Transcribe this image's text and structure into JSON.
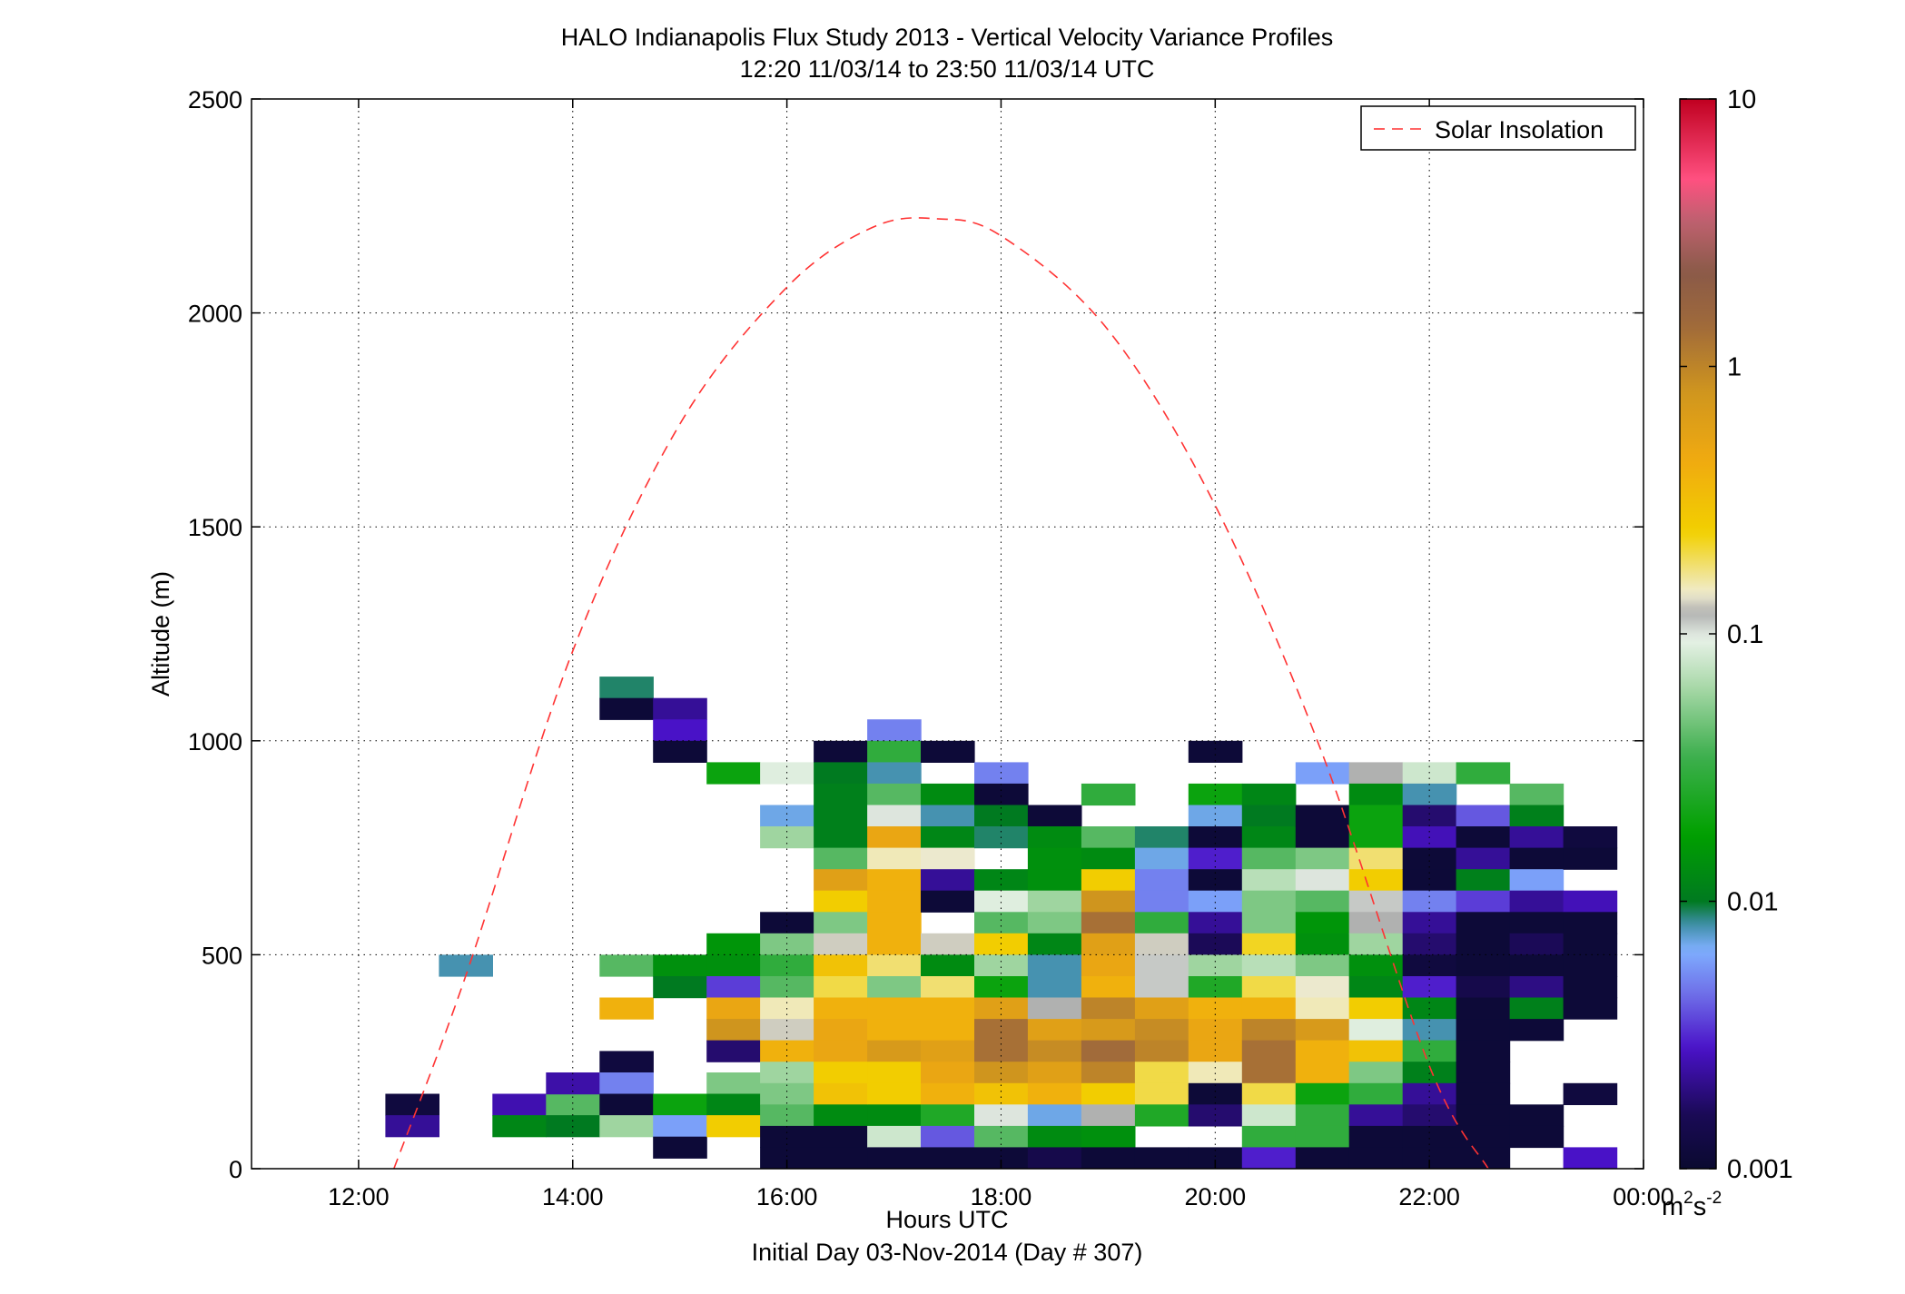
{
  "chart_data": {
    "type": "heatmap",
    "title": "HALO Indianapolis Flux Study 2013 - Vertical Velocity Variance Profiles",
    "subtitle": "12:20 11/03/14 to 23:50 11/03/14  UTC",
    "xlabel": "Hours UTC",
    "xlabel2": "Initial Day 03-Nov-2014 (Day # 307)",
    "ylabel": "Altitude (m)",
    "xlim": [
      11.0,
      24.0
    ],
    "ylim": [
      0,
      2500
    ],
    "x_ticks": [
      12,
      14,
      16,
      18,
      20,
      22,
      24
    ],
    "x_tick_labels": [
      "12:00",
      "14:00",
      "16:00",
      "18:00",
      "20:00",
      "22:00",
      "00:00"
    ],
    "y_ticks": [
      0,
      500,
      1000,
      1500,
      2000,
      2500
    ],
    "y_tick_labels": [
      "0",
      "500",
      "1000",
      "1500",
      "2000",
      "2500"
    ],
    "grid": true,
    "legend": {
      "position": "top-right",
      "entries": [
        "Solar Insolation"
      ]
    },
    "colorbar": {
      "scale": "log",
      "range": [
        0.001,
        10
      ],
      "tick_values": [
        0.001,
        0.01,
        0.1,
        1,
        10
      ],
      "tick_labels": [
        "0.001",
        "0.01",
        "0.1",
        "1",
        "10"
      ],
      "unit_main": "m",
      "unit_sup1": "2",
      "unit_mid": "s",
      "unit_sup2": "-2"
    },
    "colors": {
      "solar_line": "#ff3333",
      "grid": "#000000"
    },
    "cell_width_hours": 0.5,
    "cell_height_m": 50,
    "solar_insolation": {
      "x": [
        12.33,
        13.0,
        14.0,
        15.0,
        16.0,
        16.8,
        17.4,
        18.0,
        19.0,
        20.0,
        21.0,
        22.0,
        22.55
      ],
      "y": [
        0,
        450,
        1210,
        1740,
        2060,
        2200,
        2220,
        2180,
        1960,
        1550,
        970,
        240,
        0
      ]
    },
    "cells": [
      [
        12.5,
        150,
        0.0012
      ],
      [
        12.5,
        100,
        0.0022
      ],
      [
        13.0,
        475,
        0.008
      ],
      [
        13.5,
        150,
        0.0025
      ],
      [
        13.5,
        100,
        0.012
      ],
      [
        14.0,
        150,
        0.04
      ],
      [
        14.0,
        100,
        0.01
      ],
      [
        14.0,
        200,
        0.0024
      ],
      [
        14.5,
        1125,
        0.009
      ],
      [
        14.5,
        1075,
        0.0011
      ],
      [
        14.5,
        475,
        0.04
      ],
      [
        14.5,
        375,
        0.4
      ],
      [
        14.5,
        250,
        0.0012
      ],
      [
        14.5,
        200,
        0.005
      ],
      [
        14.5,
        150,
        0.0011
      ],
      [
        14.5,
        100,
        0.06
      ],
      [
        15.0,
        1075,
        0.0022
      ],
      [
        15.0,
        1025,
        0.0028
      ],
      [
        15.0,
        975,
        0.0011
      ],
      [
        15.0,
        475,
        0.014
      ],
      [
        15.0,
        425,
        0.01
      ],
      [
        15.0,
        150,
        0.02
      ],
      [
        15.0,
        100,
        0.006
      ],
      [
        15.0,
        50,
        0.0011
      ],
      [
        15.5,
        925,
        0.02
      ],
      [
        15.5,
        525,
        0.015
      ],
      [
        15.5,
        475,
        0.014
      ],
      [
        15.5,
        425,
        0.0035
      ],
      [
        15.5,
        375,
        0.5
      ],
      [
        15.5,
        325,
        0.8
      ],
      [
        15.5,
        275,
        0.0018
      ],
      [
        15.5,
        200,
        0.05
      ],
      [
        15.5,
        150,
        0.012
      ],
      [
        15.5,
        100,
        0.25
      ],
      [
        16.0,
        925,
        0.09
      ],
      [
        16.0,
        825,
        0.007
      ],
      [
        16.0,
        775,
        0.06
      ],
      [
        16.0,
        575,
        0.0011
      ],
      [
        16.0,
        525,
        0.05
      ],
      [
        16.0,
        475,
        0.03
      ],
      [
        16.0,
        425,
        0.04
      ],
      [
        16.0,
        375,
        0.15
      ],
      [
        16.0,
        325,
        0.13
      ],
      [
        16.0,
        275,
        0.4
      ],
      [
        16.0,
        225,
        0.06
      ],
      [
        16.0,
        175,
        0.05
      ],
      [
        16.0,
        125,
        0.04
      ],
      [
        16.0,
        75,
        0.0011
      ],
      [
        16.0,
        25,
        0.0011
      ],
      [
        16.5,
        975,
        0.0011
      ],
      [
        16.5,
        925,
        0.01
      ],
      [
        16.5,
        875,
        0.011
      ],
      [
        16.5,
        825,
        0.011
      ],
      [
        16.5,
        775,
        0.011
      ],
      [
        16.5,
        725,
        0.04
      ],
      [
        16.5,
        675,
        0.6
      ],
      [
        16.5,
        625,
        0.25
      ],
      [
        16.5,
        575,
        0.05
      ],
      [
        16.5,
        525,
        0.13
      ],
      [
        16.5,
        475,
        0.3
      ],
      [
        16.5,
        425,
        0.2
      ],
      [
        16.5,
        375,
        0.4
      ],
      [
        16.5,
        325,
        0.5
      ],
      [
        16.5,
        275,
        0.5
      ],
      [
        16.5,
        225,
        0.25
      ],
      [
        16.5,
        175,
        0.3
      ],
      [
        16.5,
        125,
        0.013
      ],
      [
        16.5,
        75,
        0.0011
      ],
      [
        16.5,
        25,
        0.0011
      ],
      [
        17.0,
        1025,
        0.005
      ],
      [
        17.0,
        975,
        0.03
      ],
      [
        17.0,
        925,
        0.008
      ],
      [
        17.0,
        875,
        0.04
      ],
      [
        17.0,
        825,
        0.1
      ],
      [
        17.0,
        775,
        0.5
      ],
      [
        17.0,
        725,
        0.15
      ],
      [
        17.0,
        675,
        0.4
      ],
      [
        17.0,
        625,
        0.4
      ],
      [
        17.0,
        575,
        0.4
      ],
      [
        17.0,
        525,
        0.4
      ],
      [
        17.0,
        475,
        0.18
      ],
      [
        17.0,
        425,
        0.05
      ],
      [
        17.0,
        375,
        0.4
      ],
      [
        17.0,
        325,
        0.4
      ],
      [
        17.0,
        275,
        0.7
      ],
      [
        17.0,
        225,
        0.25
      ],
      [
        17.0,
        175,
        0.25
      ],
      [
        17.0,
        125,
        0.013
      ],
      [
        17.0,
        75,
        0.08
      ],
      [
        17.0,
        25,
        0.0011
      ],
      [
        17.5,
        975,
        0.0011
      ],
      [
        17.5,
        875,
        0.013
      ],
      [
        17.5,
        825,
        0.008
      ],
      [
        17.5,
        775,
        0.012
      ],
      [
        17.5,
        725,
        0.14
      ],
      [
        17.5,
        675,
        0.0022
      ],
      [
        17.5,
        625,
        0.0011
      ],
      [
        17.5,
        525,
        0.13
      ],
      [
        17.5,
        475,
        0.013
      ],
      [
        17.5,
        425,
        0.18
      ],
      [
        17.5,
        375,
        0.4
      ],
      [
        17.5,
        325,
        0.4
      ],
      [
        17.5,
        275,
        0.6
      ],
      [
        17.5,
        225,
        0.5
      ],
      [
        17.5,
        175,
        0.4
      ],
      [
        17.5,
        125,
        0.025
      ],
      [
        17.5,
        75,
        0.004
      ],
      [
        17.5,
        25,
        0.0011
      ],
      [
        18.0,
        925,
        0.005
      ],
      [
        18.0,
        875,
        0.0011
      ],
      [
        18.0,
        825,
        0.01
      ],
      [
        18.0,
        775,
        0.009
      ],
      [
        18.0,
        675,
        0.012
      ],
      [
        18.0,
        625,
        0.09
      ],
      [
        18.0,
        575,
        0.04
      ],
      [
        18.0,
        525,
        0.25
      ],
      [
        18.0,
        475,
        0.06
      ],
      [
        18.0,
        425,
        0.02
      ],
      [
        18.0,
        375,
        0.6
      ],
      [
        18.0,
        325,
        1.3
      ],
      [
        18.0,
        275,
        1.3
      ],
      [
        18.0,
        225,
        0.8
      ],
      [
        18.0,
        175,
        0.3
      ],
      [
        18.0,
        125,
        0.1
      ],
      [
        18.0,
        75,
        0.04
      ],
      [
        18.0,
        25,
        0.0011
      ],
      [
        18.5,
        825,
        0.0011
      ],
      [
        18.5,
        775,
        0.013
      ],
      [
        18.5,
        725,
        0.014
      ],
      [
        18.5,
        675,
        0.014
      ],
      [
        18.5,
        625,
        0.06
      ],
      [
        18.5,
        575,
        0.05
      ],
      [
        18.5,
        525,
        0.012
      ],
      [
        18.5,
        475,
        0.008
      ],
      [
        18.5,
        425,
        0.008
      ],
      [
        18.5,
        375,
        0.12
      ],
      [
        18.5,
        325,
        0.6
      ],
      [
        18.5,
        275,
        0.9
      ],
      [
        18.5,
        225,
        0.6
      ],
      [
        18.5,
        175,
        0.4
      ],
      [
        18.5,
        125,
        0.007
      ],
      [
        18.5,
        75,
        0.013
      ],
      [
        18.5,
        25,
        0.0014
      ],
      [
        19.0,
        875,
        0.03
      ],
      [
        19.0,
        775,
        0.04
      ],
      [
        19.0,
        725,
        0.013
      ],
      [
        19.0,
        675,
        0.25
      ],
      [
        19.0,
        625,
        0.8
      ],
      [
        19.0,
        575,
        1.3
      ],
      [
        19.0,
        525,
        0.6
      ],
      [
        19.0,
        475,
        0.5
      ],
      [
        19.0,
        425,
        0.4
      ],
      [
        19.0,
        375,
        1.0
      ],
      [
        19.0,
        325,
        0.7
      ],
      [
        19.0,
        275,
        1.4
      ],
      [
        19.0,
        225,
        1.0
      ],
      [
        19.0,
        175,
        0.25
      ],
      [
        19.0,
        125,
        0.12
      ],
      [
        19.0,
        75,
        0.014
      ],
      [
        19.0,
        25,
        0.0011
      ],
      [
        19.5,
        775,
        0.009
      ],
      [
        19.5,
        725,
        0.007
      ],
      [
        19.5,
        675,
        0.005
      ],
      [
        19.5,
        625,
        0.005
      ],
      [
        19.5,
        575,
        0.03
      ],
      [
        19.5,
        525,
        0.13
      ],
      [
        19.5,
        475,
        0.11
      ],
      [
        19.5,
        425,
        0.11
      ],
      [
        19.5,
        375,
        0.6
      ],
      [
        19.5,
        325,
        0.9
      ],
      [
        19.5,
        275,
        1.0
      ],
      [
        19.5,
        225,
        0.2
      ],
      [
        19.5,
        175,
        0.2
      ],
      [
        19.5,
        125,
        0.025
      ],
      [
        19.5,
        25,
        0.0011
      ],
      [
        20.0,
        975,
        0.0011
      ],
      [
        20.0,
        875,
        0.02
      ],
      [
        20.0,
        825,
        0.007
      ],
      [
        20.0,
        775,
        0.0011
      ],
      [
        20.0,
        725,
        0.003
      ],
      [
        20.0,
        675,
        0.0011
      ],
      [
        20.0,
        625,
        0.006
      ],
      [
        20.0,
        575,
        0.0022
      ],
      [
        20.0,
        525,
        0.0016
      ],
      [
        20.0,
        475,
        0.06
      ],
      [
        20.0,
        425,
        0.025
      ],
      [
        20.0,
        375,
        0.4
      ],
      [
        20.0,
        325,
        0.5
      ],
      [
        20.0,
        275,
        0.5
      ],
      [
        20.0,
        225,
        0.15
      ],
      [
        20.0,
        175,
        0.0011
      ],
      [
        20.0,
        125,
        0.0018
      ],
      [
        20.0,
        25,
        0.0011
      ],
      [
        20.5,
        875,
        0.012
      ],
      [
        20.5,
        825,
        0.01
      ],
      [
        20.5,
        775,
        0.012
      ],
      [
        20.5,
        725,
        0.04
      ],
      [
        20.5,
        675,
        0.07
      ],
      [
        20.5,
        625,
        0.05
      ],
      [
        20.5,
        575,
        0.05
      ],
      [
        20.5,
        525,
        0.22
      ],
      [
        20.5,
        475,
        0.07
      ],
      [
        20.5,
        425,
        0.2
      ],
      [
        20.5,
        375,
        0.4
      ],
      [
        20.5,
        325,
        1.0
      ],
      [
        20.5,
        275,
        1.3
      ],
      [
        20.5,
        225,
        1.3
      ],
      [
        20.5,
        175,
        0.2
      ],
      [
        20.5,
        125,
        0.08
      ],
      [
        20.5,
        75,
        0.03
      ],
      [
        20.5,
        25,
        0.003
      ],
      [
        21.0,
        925,
        0.006
      ],
      [
        21.0,
        825,
        0.0011
      ],
      [
        21.0,
        775,
        0.0011
      ],
      [
        21.0,
        725,
        0.05
      ],
      [
        21.0,
        675,
        0.1
      ],
      [
        21.0,
        625,
        0.04
      ],
      [
        21.0,
        575,
        0.015
      ],
      [
        21.0,
        525,
        0.014
      ],
      [
        21.0,
        475,
        0.05
      ],
      [
        21.0,
        425,
        0.14
      ],
      [
        21.0,
        375,
        0.15
      ],
      [
        21.0,
        325,
        0.7
      ],
      [
        21.0,
        275,
        0.4
      ],
      [
        21.0,
        225,
        0.4
      ],
      [
        21.0,
        175,
        0.02
      ],
      [
        21.0,
        125,
        0.03
      ],
      [
        21.0,
        75,
        0.03
      ],
      [
        21.0,
        25,
        0.0011
      ],
      [
        21.5,
        925,
        0.12
      ],
      [
        21.5,
        875,
        0.013
      ],
      [
        21.5,
        825,
        0.02
      ],
      [
        21.5,
        775,
        0.02
      ],
      [
        21.5,
        725,
        0.18
      ],
      [
        21.5,
        675,
        0.25
      ],
      [
        21.5,
        625,
        0.11
      ],
      [
        21.5,
        575,
        0.12
      ],
      [
        21.5,
        525,
        0.06
      ],
      [
        21.5,
        475,
        0.014
      ],
      [
        21.5,
        425,
        0.012
      ],
      [
        21.5,
        375,
        0.25
      ],
      [
        21.5,
        325,
        0.09
      ],
      [
        21.5,
        275,
        0.3
      ],
      [
        21.5,
        225,
        0.05
      ],
      [
        21.5,
        175,
        0.03
      ],
      [
        21.5,
        125,
        0.0022
      ],
      [
        21.5,
        75,
        0.0011
      ],
      [
        21.5,
        25,
        0.0011
      ],
      [
        22.0,
        925,
        0.08
      ],
      [
        22.0,
        875,
        0.008
      ],
      [
        22.0,
        825,
        0.0018
      ],
      [
        22.0,
        775,
        0.0026
      ],
      [
        22.0,
        725,
        0.0011
      ],
      [
        22.0,
        675,
        0.0011
      ],
      [
        22.0,
        625,
        0.005
      ],
      [
        22.0,
        575,
        0.0022
      ],
      [
        22.0,
        525,
        0.0018
      ],
      [
        22.0,
        475,
        0.0012
      ],
      [
        22.0,
        425,
        0.003
      ],
      [
        22.0,
        375,
        0.012
      ],
      [
        22.0,
        325,
        0.008
      ],
      [
        22.0,
        275,
        0.03
      ],
      [
        22.0,
        225,
        0.011
      ],
      [
        22.0,
        175,
        0.0022
      ],
      [
        22.0,
        125,
        0.0018
      ],
      [
        22.0,
        75,
        0.0011
      ],
      [
        22.0,
        25,
        0.0011
      ],
      [
        22.5,
        925,
        0.03
      ],
      [
        22.5,
        825,
        0.004
      ],
      [
        22.5,
        775,
        0.0011
      ],
      [
        22.5,
        725,
        0.0022
      ],
      [
        22.5,
        675,
        0.011
      ],
      [
        22.5,
        625,
        0.0035
      ],
      [
        22.5,
        575,
        0.0011
      ],
      [
        22.5,
        525,
        0.0011
      ],
      [
        22.5,
        475,
        0.0011
      ],
      [
        22.5,
        425,
        0.0014
      ],
      [
        22.5,
        375,
        0.0011
      ],
      [
        22.5,
        325,
        0.0011
      ],
      [
        22.5,
        275,
        0.0011
      ],
      [
        22.5,
        225,
        0.0011
      ],
      [
        22.5,
        175,
        0.0011
      ],
      [
        22.5,
        125,
        0.0011
      ],
      [
        22.5,
        75,
        0.0011
      ],
      [
        22.5,
        25,
        0.0011
      ],
      [
        23.0,
        875,
        0.04
      ],
      [
        23.0,
        825,
        0.011
      ],
      [
        23.0,
        775,
        0.0022
      ],
      [
        23.0,
        725,
        0.0011
      ],
      [
        23.0,
        675,
        0.006
      ],
      [
        23.0,
        625,
        0.0022
      ],
      [
        23.0,
        575,
        0.0011
      ],
      [
        23.0,
        525,
        0.0016
      ],
      [
        23.0,
        475,
        0.0011
      ],
      [
        23.0,
        425,
        0.002
      ],
      [
        23.0,
        375,
        0.011
      ],
      [
        23.0,
        325,
        0.0011
      ],
      [
        23.0,
        125,
        0.0011
      ],
      [
        23.0,
        75,
        0.0011
      ],
      [
        23.5,
        775,
        0.0012
      ],
      [
        23.5,
        725,
        0.0011
      ],
      [
        23.5,
        625,
        0.0026
      ],
      [
        23.5,
        575,
        0.0011
      ],
      [
        23.5,
        525,
        0.0011
      ],
      [
        23.5,
        475,
        0.0011
      ],
      [
        23.5,
        425,
        0.0011
      ],
      [
        23.5,
        375,
        0.0011
      ],
      [
        23.5,
        175,
        0.0012
      ],
      [
        23.5,
        25,
        0.0028
      ]
    ]
  }
}
